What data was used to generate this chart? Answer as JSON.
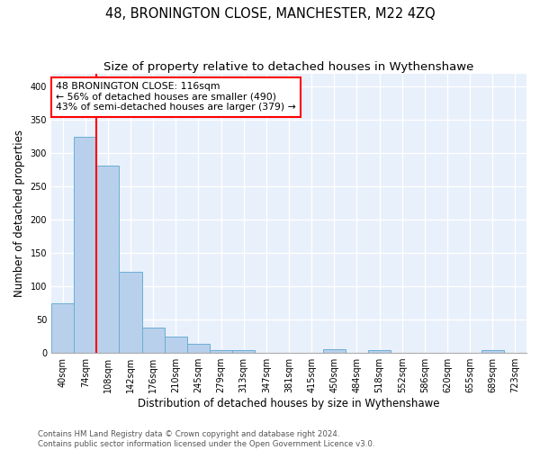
{
  "title": "48, BRONINGTON CLOSE, MANCHESTER, M22 4ZQ",
  "subtitle": "Size of property relative to detached houses in Wythenshawe",
  "xlabel": "Distribution of detached houses by size in Wythenshawe",
  "ylabel": "Number of detached properties",
  "bin_labels": [
    "40sqm",
    "74sqm",
    "108sqm",
    "142sqm",
    "176sqm",
    "210sqm",
    "245sqm",
    "279sqm",
    "313sqm",
    "347sqm",
    "381sqm",
    "415sqm",
    "450sqm",
    "484sqm",
    "518sqm",
    "552sqm",
    "586sqm",
    "620sqm",
    "655sqm",
    "689sqm",
    "723sqm"
  ],
  "bar_values": [
    75,
    325,
    281,
    122,
    38,
    25,
    13,
    4,
    4,
    0,
    0,
    0,
    5,
    0,
    4,
    0,
    0,
    0,
    0,
    4,
    0
  ],
  "bar_color": "#b8d0eb",
  "bar_edge_color": "#6aaed6",
  "annotation_text": "48 BRONINGTON CLOSE: 116sqm\n← 56% of detached houses are smaller (490)\n43% of semi-detached houses are larger (379) →",
  "annotation_box_color": "white",
  "annotation_box_edge_color": "red",
  "ylim": [
    0,
    420
  ],
  "yticks": [
    0,
    50,
    100,
    150,
    200,
    250,
    300,
    350,
    400
  ],
  "footer_text": "Contains HM Land Registry data © Crown copyright and database right 2024.\nContains public sector information licensed under the Open Government Licence v3.0.",
  "bg_color": "#e8f0fb",
  "grid_color": "white",
  "title_fontsize": 10.5,
  "subtitle_fontsize": 9.5,
  "tick_fontsize": 7,
  "ylabel_fontsize": 8.5,
  "xlabel_fontsize": 8.5,
  "annotation_fontsize": 7.8,
  "footer_fontsize": 6.2
}
